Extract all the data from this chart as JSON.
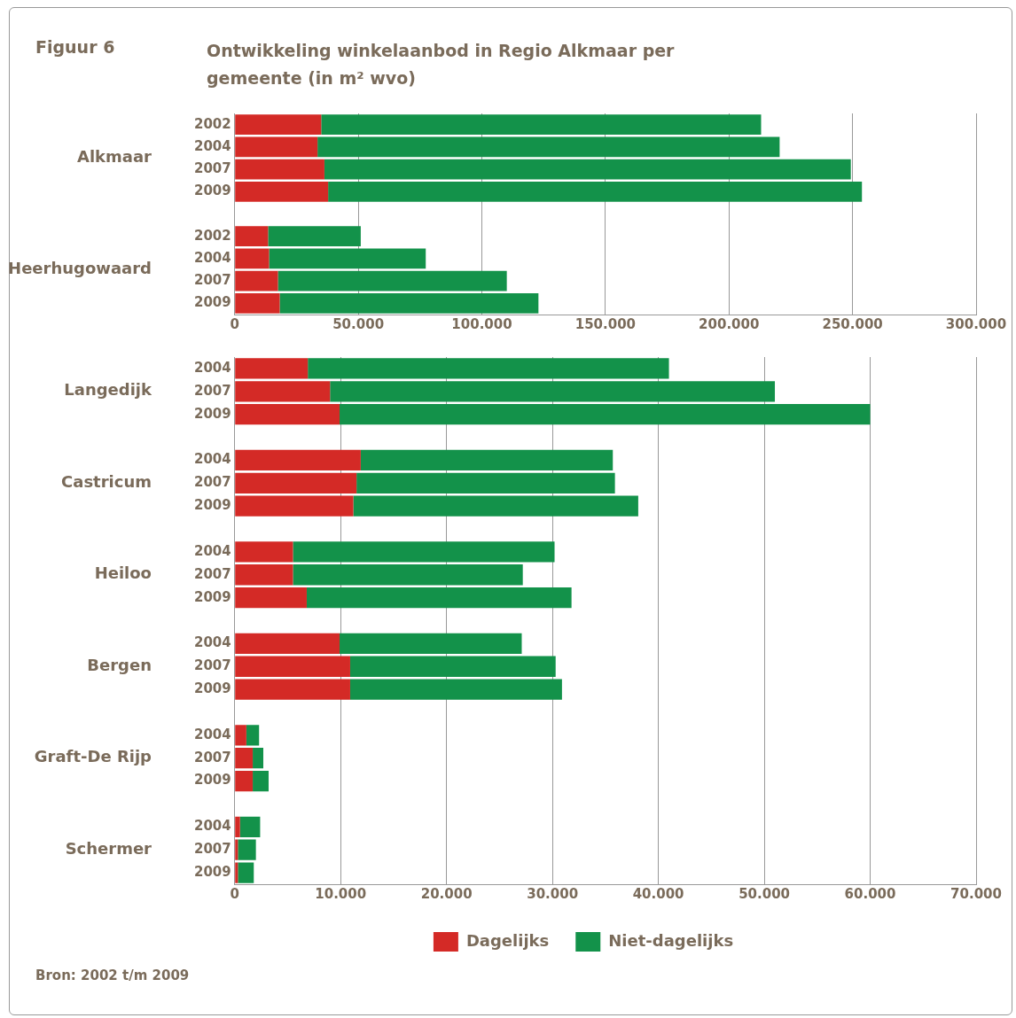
{
  "chart_data": [
    {
      "type": "bar",
      "title": "Ontwikkeling winkelaanbod in Regio Alkmaar per gemeente (in m² wvo)",
      "subtitle": "Figuur 6",
      "orientation": "horizontal",
      "stacked": true,
      "categories": [
        "2002",
        "2004",
        "2007",
        "2009",
        null,
        "2002",
        "2004",
        "2007",
        "2009"
      ],
      "series": [
        {
          "color": "#d42a26",
          "values": [
            35000,
            33500,
            36300,
            37800,
            null,
            13500,
            13900,
            17500,
            18200
          ]
        },
        {
          "color": "#13924a",
          "values": [
            178000,
            187000,
            213000,
            216000,
            null,
            37500,
            63400,
            92600,
            104700
          ]
        }
      ],
      "xlim": [
        0,
        300000
      ],
      "xticks": [
        0,
        {
          "value": 50000,
          "label": "50.000"
        },
        {
          "value": 100000,
          "label": "100.000"
        },
        {
          "value": 150000,
          "label": "150.000"
        },
        {
          "value": 200000,
          "label": "200.000"
        },
        {
          "value": 250000,
          "label": "250.000"
        },
        {
          "value": 300000,
          "label": "300.000"
        }
      ],
      "grid": "x",
      "legend": false,
      "annotations": [
        "Alkmaar",
        "Heerhugowaard"
      ]
    },
    {
      "type": "bar",
      "orientation": "horizontal",
      "stacked": true,
      "categories": [
        "2004",
        "2007",
        "2009",
        null,
        "2004",
        "2007",
        "2009",
        null,
        "2004",
        "2007",
        "2009",
        null,
        "2004",
        "2007",
        "2009",
        null,
        "2004",
        "2007",
        "2009",
        null,
        "2004",
        "2007",
        "2009"
      ],
      "series": [
        {
          "name": "Dagelijks",
          "color": "#d42a26",
          "values": [
            6900,
            9000,
            9900,
            null,
            11900,
            11500,
            11200,
            null,
            5500,
            5500,
            6800,
            null,
            9900,
            10900,
            10900,
            null,
            1100,
            1700,
            1700,
            null,
            500,
            300,
            300
          ]
        },
        {
          "name": "Niet-dagelijks",
          "color": "#13924a",
          "values": [
            34100,
            42000,
            50100,
            null,
            23800,
            24400,
            26900,
            null,
            24700,
            21700,
            25000,
            null,
            17200,
            19400,
            20000,
            null,
            1200,
            1000,
            1500,
            null,
            1900,
            1700,
            1500
          ]
        }
      ],
      "xlim": [
        0,
        70000
      ],
      "xticks": [
        0,
        {
          "value": 10000,
          "label": "10.000"
        },
        {
          "value": 20000,
          "label": "20.000"
        },
        {
          "value": 30000,
          "label": "30.000"
        },
        {
          "value": 40000,
          "label": "40.000"
        },
        {
          "value": 50000,
          "label": "50.000"
        },
        {
          "value": 60000,
          "label": "60.000"
        },
        {
          "value": 70000,
          "label": "70.000"
        }
      ],
      "grid": "x",
      "legend": "bottom",
      "annotations": [
        "Langedijk",
        "Castricum",
        "Heiloo",
        "Bergen",
        "Graft-De Rijp",
        "Schermer",
        "Bron: 2002 t/m 2009"
      ]
    }
  ]
}
